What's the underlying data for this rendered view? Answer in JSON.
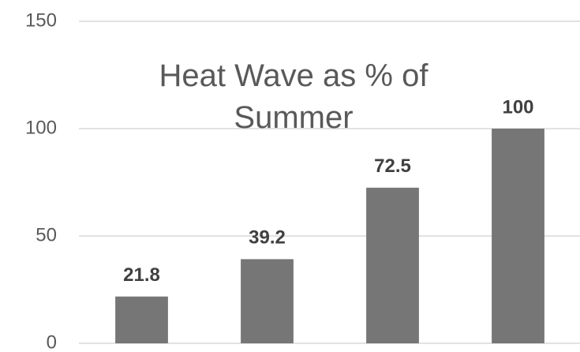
{
  "chart_data": {
    "type": "bar",
    "title": "Heat Wave as % of Summer",
    "categories": [
      null,
      null,
      null,
      null
    ],
    "values": [
      21.8,
      39.2,
      72.5,
      100
    ],
    "color": "#767676",
    "ylim": [
      0,
      150
    ],
    "yticks": [
      0,
      50,
      100,
      150
    ],
    "grid": true
  }
}
